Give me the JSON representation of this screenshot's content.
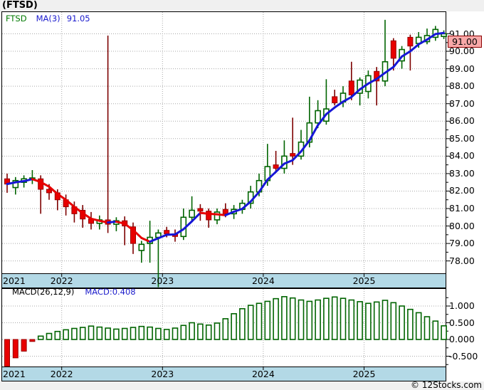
{
  "header": {
    "title": "(FTSD)"
  },
  "legend": {
    "symbol": "FTSD",
    "ma_label": "MA(3)",
    "ma_value": "91.05"
  },
  "macd_panel": {
    "label": "MACD(26,12,9)",
    "value_label": "MACD:0.408"
  },
  "price_tag": {
    "value": "91.00"
  },
  "footer": {
    "copyright": "© 12Stocks.com"
  },
  "colors": {
    "up_outline": "#006400",
    "up_fill": "#ffffff",
    "down_fill": "#e80000",
    "down_border": "#990000",
    "down_wick": "#7d0000",
    "ma_up": "#1616d6",
    "ma_down": "#e60000",
    "axis_band": "#b3d9e6",
    "tag_bg": "#f8a8a8",
    "grid": "#a8a8a8"
  },
  "chart_data": [
    {
      "type": "candlestick",
      "title": "(FTSD)",
      "ma": {
        "period": 3,
        "last_value": 91.05,
        "up_color": "#1616d6",
        "down_color": "#e60000"
      },
      "last_price": 91.0,
      "y_axis": {
        "min": 78,
        "max": 91,
        "step": 1,
        "tick_labels": [
          "91.00",
          "90.00",
          "89.00",
          "88.00",
          "87.00",
          "86.00",
          "85.00",
          "84.00",
          "83.00",
          "82.00",
          "81.00",
          "80.00",
          "79.00",
          "78.00"
        ]
      },
      "x_axis": {
        "tick_labels": [
          "2021",
          "2022",
          "2023",
          "2024",
          "2025"
        ],
        "year_start_indices": [
          0,
          7,
          19,
          31,
          43
        ]
      },
      "grid": true,
      "candles_format": [
        "open",
        "high",
        "low",
        "close"
      ],
      "candles": [
        [
          82.7,
          83.0,
          81.9,
          82.4
        ],
        [
          82.2,
          82.8,
          81.8,
          82.6
        ],
        [
          82.5,
          82.9,
          82.2,
          82.7
        ],
        [
          82.65,
          83.2,
          82.4,
          82.75
        ],
        [
          82.7,
          82.9,
          80.7,
          82.1
        ],
        [
          82.1,
          82.4,
          81.5,
          81.9
        ],
        [
          81.9,
          82.1,
          80.9,
          81.5
        ],
        [
          81.5,
          81.8,
          80.6,
          81.1
        ],
        [
          81.1,
          81.4,
          80.2,
          80.7
        ],
        [
          80.9,
          81.2,
          79.9,
          80.4
        ],
        [
          80.4,
          80.8,
          79.8,
          80.15
        ],
        [
          80.15,
          80.6,
          79.8,
          80.35
        ],
        [
          80.35,
          90.9,
          79.6,
          80.1
        ],
        [
          80.1,
          80.5,
          79.7,
          80.3
        ],
        [
          80.3,
          80.55,
          78.9,
          80.0
        ],
        [
          79.95,
          80.2,
          78.4,
          79.0
        ],
        [
          78.6,
          79.15,
          77.9,
          78.95
        ],
        [
          79.0,
          80.3,
          77.9,
          79.35
        ],
        [
          79.35,
          79.8,
          76.5,
          79.6
        ],
        [
          79.75,
          79.95,
          79.35,
          79.55
        ],
        [
          79.55,
          79.8,
          79.1,
          79.4
        ],
        [
          79.4,
          81.0,
          79.2,
          80.5
        ],
        [
          80.5,
          81.7,
          80.25,
          80.9
        ],
        [
          81.0,
          81.25,
          80.3,
          80.85
        ],
        [
          80.85,
          81.0,
          79.9,
          80.35
        ],
        [
          80.35,
          81.0,
          80.1,
          80.8
        ],
        [
          80.95,
          81.3,
          80.5,
          80.7
        ],
        [
          80.7,
          81.2,
          80.4,
          80.95
        ],
        [
          80.95,
          81.5,
          80.7,
          81.3
        ],
        [
          81.3,
          82.3,
          81.0,
          81.95
        ],
        [
          81.95,
          83.0,
          81.7,
          82.6
        ],
        [
          82.6,
          84.7,
          82.3,
          83.4
        ],
        [
          83.5,
          84.3,
          83.1,
          83.3
        ],
        [
          83.3,
          84.9,
          83.0,
          84.0
        ],
        [
          84.15,
          86.2,
          83.5,
          84.0
        ],
        [
          84.0,
          85.5,
          83.8,
          84.8
        ],
        [
          84.8,
          87.4,
          84.5,
          85.9
        ],
        [
          85.9,
          87.2,
          85.6,
          86.6
        ],
        [
          86.0,
          88.4,
          85.8,
          86.7
        ],
        [
          87.4,
          87.8,
          86.9,
          87.05
        ],
        [
          87.1,
          88.0,
          86.8,
          87.6
        ],
        [
          88.3,
          89.4,
          87.2,
          87.5
        ],
        [
          87.6,
          88.5,
          86.9,
          88.35
        ],
        [
          87.7,
          88.9,
          87.3,
          88.6
        ],
        [
          88.85,
          89.1,
          86.9,
          88.3
        ],
        [
          88.3,
          91.8,
          88.0,
          89.4
        ],
        [
          90.6,
          90.75,
          88.9,
          89.6
        ],
        [
          89.45,
          90.3,
          89.0,
          90.1
        ],
        [
          90.8,
          90.95,
          88.9,
          90.3
        ],
        [
          90.45,
          91.1,
          90.2,
          90.8
        ],
        [
          90.55,
          91.3,
          90.4,
          90.9
        ],
        [
          90.8,
          91.45,
          90.6,
          91.25
        ],
        [
          90.85,
          91.2,
          90.7,
          91.0
        ]
      ]
    },
    {
      "type": "bar",
      "title": "MACD(26,12,9)",
      "last_value": 0.408,
      "y_axis": {
        "tick_labels": [
          "1.000",
          "0.500",
          "0.000",
          "-0.500"
        ],
        "tick_values": [
          1.0,
          0.5,
          0.0,
          -0.5
        ],
        "minor_tick_values": [
          1.25,
          0.75,
          0.25,
          -0.25,
          -0.75
        ]
      },
      "x_axis": {
        "tick_labels": [
          "2021",
          "2022",
          "2023",
          "2024",
          "2025"
        ],
        "year_start_indices": [
          0,
          7,
          19,
          31,
          43
        ]
      },
      "grid": true,
      "values": [
        -0.8,
        -0.55,
        -0.35,
        -0.06,
        0.1,
        0.18,
        0.24,
        0.29,
        0.33,
        0.36,
        0.4,
        0.37,
        0.34,
        0.31,
        0.33,
        0.36,
        0.39,
        0.37,
        0.33,
        0.3,
        0.34,
        0.42,
        0.5,
        0.46,
        0.43,
        0.49,
        0.62,
        0.77,
        0.92,
        1.02,
        1.08,
        1.14,
        1.22,
        1.28,
        1.24,
        1.18,
        1.14,
        1.18,
        1.23,
        1.27,
        1.23,
        1.18,
        1.13,
        1.08,
        1.12,
        1.17,
        1.1,
        1.0,
        0.9,
        0.8,
        0.68,
        0.55,
        0.408
      ]
    }
  ]
}
